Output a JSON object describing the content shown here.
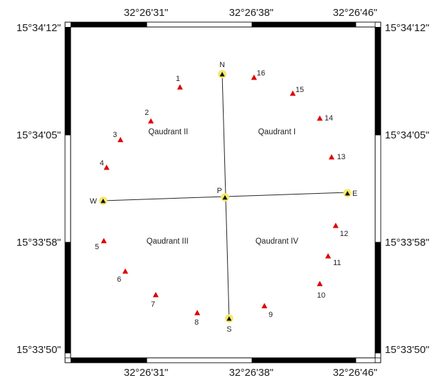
{
  "map": {
    "top_longitude_labels": [
      "32°26'31\"",
      "32°26'38\"",
      "32°26'46\""
    ],
    "bottom_longitude_labels": [
      "32°26'31\"",
      "32°26'38\"",
      "32°26'46\""
    ],
    "left_latitude_labels": [
      "15°34'12\"",
      "15°34'05\"",
      "15°33'58\"",
      "15°33'50\""
    ],
    "right_latitude_labels": [
      "15°34'12\"",
      "15°34'05\"",
      "15°33'58\"",
      "15°33'50\""
    ],
    "quadrants": [
      "Qaudrant I",
      "Qaudrant II",
      "Qaudrant III",
      "Qaudrant IV"
    ],
    "transect_points": [
      "N",
      "E",
      "S",
      "W",
      "P"
    ],
    "sample_points": [
      "1",
      "2",
      "3",
      "4",
      "5",
      "6",
      "7",
      "8",
      "9",
      "10",
      "11",
      "12",
      "13",
      "14",
      "15",
      "16"
    ],
    "colors": {
      "sample_marker": "#e00000",
      "transect_marker": "#111111",
      "transect_halo": "#f5e96a",
      "frame": "#000000"
    }
  }
}
